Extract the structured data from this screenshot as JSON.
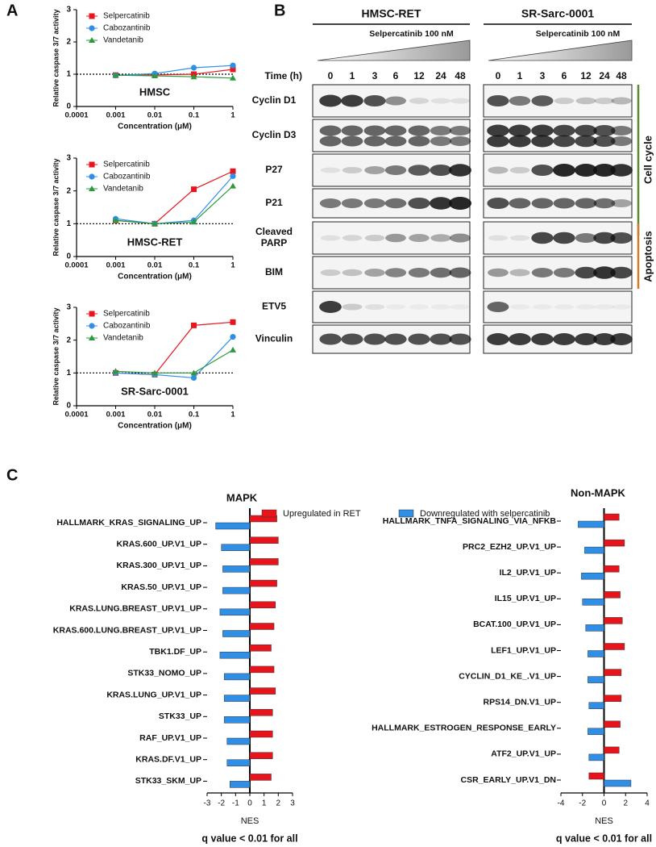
{
  "panel_labels": [
    "A",
    "B",
    "C"
  ],
  "chart_data": [
    {
      "type": "line",
      "annotation": "HMSC",
      "xlabel": "Concentration (μM)",
      "ylabel": "Relative caspase 3/7 activity",
      "log_x": true,
      "x": [
        0.001,
        0.01,
        0.1,
        1
      ],
      "xlim": [
        0.0001,
        1
      ],
      "xticks": [
        0.0001,
        0.001,
        0.01,
        0.1,
        1
      ],
      "ylim": [
        0,
        3
      ],
      "yticks": [
        0,
        1,
        2,
        3
      ],
      "reference_y": 1,
      "series": [
        {
          "name": "Selpercatinib",
          "color": "#e8151b",
          "marker": "square",
          "values": [
            0.97,
            0.98,
            1.0,
            1.15
          ]
        },
        {
          "name": "Cabozantinib",
          "color": "#2f8fe8",
          "marker": "circle",
          "values": [
            0.96,
            1.02,
            1.2,
            1.27
          ]
        },
        {
          "name": "Vandetanib",
          "color": "#2a9a3a",
          "marker": "triangle",
          "values": [
            0.97,
            0.95,
            0.92,
            0.88
          ]
        }
      ]
    },
    {
      "type": "line",
      "annotation": "HMSC-RET",
      "xlabel": "Concentration (μM)",
      "ylabel": "Relative caspase 3/7 activity",
      "log_x": true,
      "x": [
        0.001,
        0.01,
        0.1,
        1
      ],
      "xlim": [
        0.0001,
        1
      ],
      "xticks": [
        0.0001,
        0.001,
        0.01,
        0.1,
        1
      ],
      "ylim": [
        0,
        3
      ],
      "yticks": [
        0,
        1,
        2,
        3
      ],
      "reference_y": 1,
      "series": [
        {
          "name": "Selpercatinib",
          "color": "#e8151b",
          "marker": "square",
          "values": [
            1.1,
            1.0,
            2.05,
            2.6
          ]
        },
        {
          "name": "Cabozantinib",
          "color": "#2f8fe8",
          "marker": "circle",
          "values": [
            1.15,
            1.0,
            1.1,
            2.45
          ]
        },
        {
          "name": "Vandetanib",
          "color": "#2a9a3a",
          "marker": "triangle",
          "values": [
            1.1,
            1.0,
            1.05,
            2.15
          ]
        }
      ]
    },
    {
      "type": "line",
      "annotation": "SR-Sarc-0001",
      "xlabel": "Concentration (μM)",
      "ylabel": "Relative caspase 3/7 activity",
      "log_x": true,
      "x": [
        0.001,
        0.01,
        0.1,
        1
      ],
      "xlim": [
        0.0001,
        1
      ],
      "xticks": [
        0.0001,
        0.001,
        0.01,
        0.1,
        1
      ],
      "ylim": [
        0,
        3
      ],
      "yticks": [
        0,
        1,
        2,
        3
      ],
      "reference_y": 1,
      "series": [
        {
          "name": "Selpercatinib",
          "color": "#e8151b",
          "marker": "square",
          "values": [
            1.0,
            0.95,
            2.45,
            2.55
          ]
        },
        {
          "name": "Cabozantinib",
          "color": "#2f8fe8",
          "marker": "circle",
          "values": [
            1.0,
            0.95,
            0.85,
            2.1
          ]
        },
        {
          "name": "Vandetanib",
          "color": "#2a9a3a",
          "marker": "triangle",
          "values": [
            1.05,
            1.0,
            1.0,
            1.7
          ]
        }
      ]
    },
    {
      "type": "hbar",
      "title": "MAPK",
      "xlabel": "NES",
      "note": "q value < 0.01 for all",
      "xlim": [
        -3,
        3
      ],
      "xticks": [
        -3,
        -2,
        -1,
        0,
        1,
        2,
        3
      ],
      "categories": [
        "HALLMARK_KRAS_SIGNALING_UP",
        "KRAS.600_UP.V1_UP",
        "KRAS.300_UP.V1_UP",
        "KRAS.50_UP.V1_UP",
        "KRAS.LUNG.BREAST_UP.V1_UP",
        "KRAS.600.LUNG.BREAST_UP.V1_UP",
        "TBK1.DF_UP",
        "STK33_NOMO_UP",
        "KRAS.LUNG_UP.V1_UP",
        "STK33_UP",
        "RAF_UP.V1_UP",
        "KRAS.DF.V1_UP",
        "STK33_SKM_UP"
      ],
      "series": [
        {
          "name": "Upregulated in RET",
          "color": "#e8141c",
          "values": [
            1.9,
            2.0,
            2.0,
            1.9,
            1.8,
            1.7,
            1.5,
            1.7,
            1.8,
            1.6,
            1.6,
            1.6,
            1.5
          ]
        },
        {
          "name": "Downregulated with selpercatinib",
          "color": "#2f8ee6",
          "values": [
            -2.4,
            -2.0,
            -1.9,
            -1.9,
            -2.1,
            -1.9,
            -2.1,
            -1.8,
            -1.8,
            -1.8,
            -1.6,
            -1.6,
            -1.4
          ]
        }
      ]
    },
    {
      "type": "hbar",
      "title": "Non-MAPK",
      "xlabel": "NES",
      "note": "q value < 0.01 for all",
      "xlim": [
        -4,
        4
      ],
      "xticks": [
        -4,
        -2,
        0,
        2,
        4
      ],
      "categories": [
        "HALLMARK_TNFA_SIGNALING_VIA_NFKB",
        "PRC2_EZH2_UP.V1_UP",
        "IL2_UP.V1_UP",
        "IL15_UP.V1_UP",
        "BCAT.100_UP.V1_UP",
        "LEF1_UP.V1_UP",
        "CYCLIN_D1_KE_.V1_UP",
        "RPS14_DN.V1_UP",
        "HALLMARK_ESTROGEN_RESPONSE_EARLY",
        "ATF2_UP.V1_UP",
        "CSR_EARLY_UP.V1_DN"
      ],
      "series": [
        {
          "color": "#e8141c",
          "values": [
            1.4,
            1.9,
            1.4,
            1.5,
            1.7,
            1.9,
            1.6,
            1.6,
            1.5,
            1.4,
            -1.4
          ]
        },
        {
          "color": "#2f8ee6",
          "values": [
            -2.4,
            -1.8,
            -2.1,
            -2.0,
            -1.7,
            -1.5,
            -1.5,
            -1.4,
            -1.5,
            -1.4,
            2.5
          ]
        }
      ]
    }
  ],
  "blot": {
    "cell_lines": [
      "HMSC-RET",
      "SR-Sarc-0001"
    ],
    "treatment": "Selpercatinib 100 nM",
    "time_label": "Time (h)",
    "times": [
      "0",
      "1",
      "3",
      "6",
      "12",
      "24",
      "48"
    ],
    "rows": [
      "Cyclin D1",
      "Cyclin D3",
      "P27",
      "P21",
      "Cleaved PARP",
      "BIM",
      "ETV5",
      "Vinculin"
    ],
    "groups": [
      "Cell cycle",
      "Apoptosis"
    ]
  }
}
